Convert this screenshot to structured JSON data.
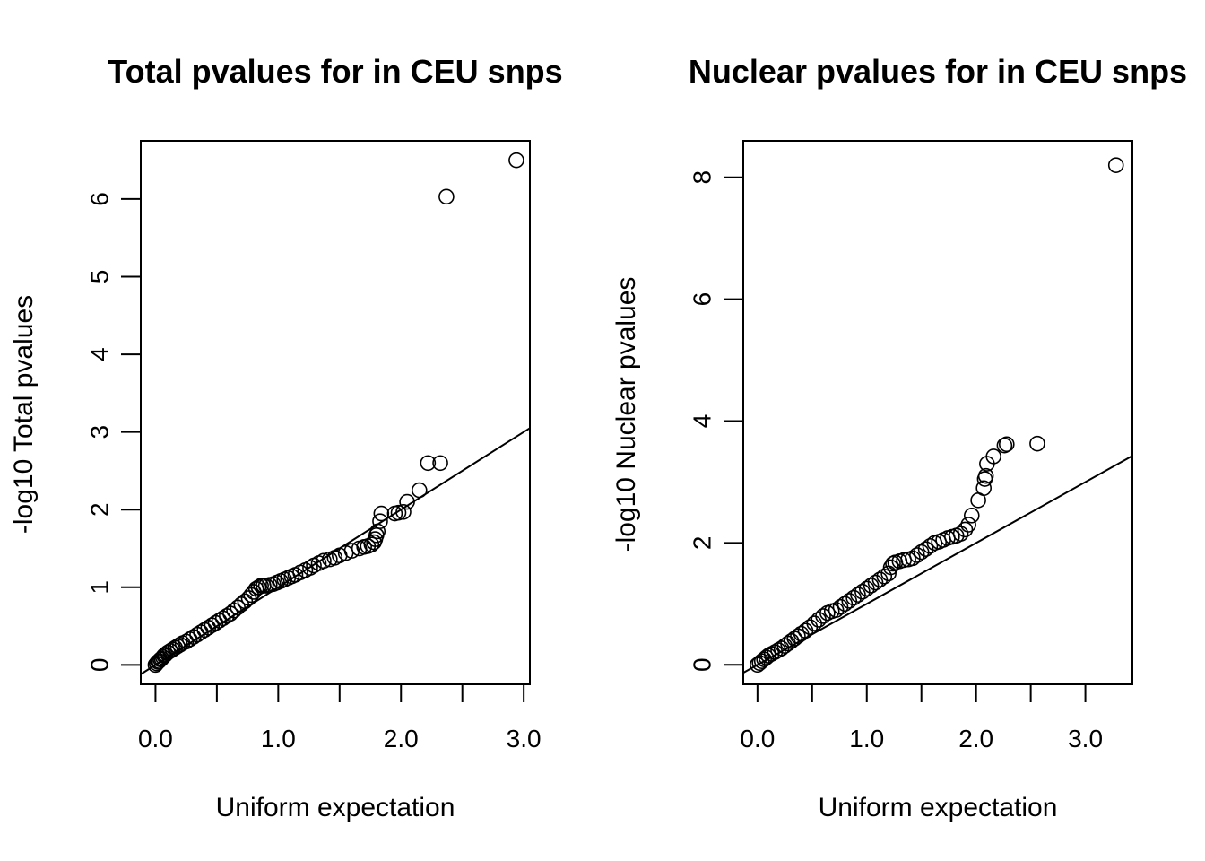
{
  "chart_data": [
    {
      "type": "scatter",
      "title": "Total pvalues for in CEU snps",
      "xlabel": "Uniform expectation",
      "ylabel": "-log10 Total pvalues",
      "xlim": [
        -0.12,
        3.05
      ],
      "ylim": [
        -0.25,
        6.75
      ],
      "xticks": [
        0.0,
        0.5,
        1.0,
        1.5,
        2.0,
        2.5,
        3.0
      ],
      "xtick_labels": [
        "0.0",
        "1.0",
        "2.0",
        "3.0"
      ],
      "xtick_label_values": [
        0.0,
        1.0,
        2.0,
        3.0
      ],
      "yticks": [
        0,
        1,
        2,
        3,
        4,
        5,
        6
      ],
      "ytick_labels": [
        "0",
        "1",
        "2",
        "3",
        "4",
        "5",
        "6"
      ],
      "reference_line": {
        "intercept": 0,
        "slope": 1
      },
      "points": {
        "x": [
          0.0,
          0.01,
          0.02,
          0.03,
          0.04,
          0.05,
          0.06,
          0.07,
          0.08,
          0.1,
          0.12,
          0.14,
          0.16,
          0.18,
          0.2,
          0.22,
          0.25,
          0.28,
          0.31,
          0.34,
          0.37,
          0.4,
          0.43,
          0.46,
          0.49,
          0.52,
          0.55,
          0.58,
          0.61,
          0.64,
          0.67,
          0.7,
          0.73,
          0.76,
          0.78,
          0.8,
          0.82,
          0.84,
          0.86,
          0.88,
          0.9,
          0.93,
          0.96,
          0.99,
          1.02,
          1.05,
          1.08,
          1.11,
          1.14,
          1.18,
          1.22,
          1.26,
          1.29,
          1.33,
          1.37,
          1.42,
          1.46,
          1.5,
          1.55,
          1.6,
          1.66,
          1.7,
          1.73,
          1.76,
          1.78,
          1.79,
          1.8,
          1.81,
          1.83,
          1.84,
          1.95,
          1.98,
          2.02,
          2.05,
          2.15,
          2.22,
          2.32,
          2.37,
          2.94
        ],
        "y": [
          0.0,
          0.02,
          0.04,
          0.05,
          0.07,
          0.08,
          0.1,
          0.12,
          0.13,
          0.16,
          0.18,
          0.2,
          0.22,
          0.24,
          0.26,
          0.28,
          0.3,
          0.33,
          0.36,
          0.39,
          0.42,
          0.45,
          0.48,
          0.51,
          0.54,
          0.57,
          0.6,
          0.63,
          0.66,
          0.7,
          0.74,
          0.78,
          0.82,
          0.86,
          0.9,
          0.94,
          0.98,
          1.0,
          1.02,
          1.02,
          1.02,
          1.03,
          1.04,
          1.06,
          1.08,
          1.1,
          1.12,
          1.14,
          1.16,
          1.19,
          1.22,
          1.25,
          1.28,
          1.31,
          1.34,
          1.36,
          1.38,
          1.41,
          1.44,
          1.47,
          1.5,
          1.52,
          1.53,
          1.55,
          1.58,
          1.62,
          1.67,
          1.72,
          1.85,
          1.95,
          1.95,
          1.96,
          1.97,
          2.1,
          2.25,
          2.6,
          2.6,
          6.03,
          6.5
        ]
      }
    },
    {
      "type": "scatter",
      "title": "Nuclear pvalues for in CEU snps",
      "xlabel": "Uniform expectation",
      "ylabel": "-log10 Nuclear pvalues",
      "xlim": [
        -0.13,
        3.43
      ],
      "ylim": [
        -0.32,
        8.6
      ],
      "xticks": [
        0.0,
        0.5,
        1.0,
        1.5,
        2.0,
        2.5,
        3.0
      ],
      "xtick_labels": [
        "0.0",
        "1.0",
        "2.0",
        "3.0"
      ],
      "xtick_label_values": [
        0.0,
        1.0,
        2.0,
        3.0
      ],
      "yticks": [
        0,
        2,
        4,
        6,
        8
      ],
      "ytick_labels": [
        "0",
        "2",
        "4",
        "6",
        "8"
      ],
      "reference_line": {
        "intercept": 0,
        "slope": 1
      },
      "points": {
        "x": [
          0.0,
          0.02,
          0.04,
          0.06,
          0.08,
          0.1,
          0.13,
          0.16,
          0.19,
          0.22,
          0.25,
          0.28,
          0.31,
          0.34,
          0.37,
          0.4,
          0.44,
          0.48,
          0.52,
          0.56,
          0.6,
          0.64,
          0.68,
          0.72,
          0.76,
          0.8,
          0.84,
          0.88,
          0.92,
          0.96,
          1.0,
          1.04,
          1.08,
          1.12,
          1.16,
          1.2,
          1.22,
          1.24,
          1.26,
          1.3,
          1.34,
          1.38,
          1.42,
          1.46,
          1.5,
          1.54,
          1.58,
          1.62,
          1.66,
          1.7,
          1.74,
          1.78,
          1.82,
          1.86,
          1.9,
          1.93,
          1.96,
          2.02,
          2.07,
          2.08,
          2.09,
          2.1,
          2.16,
          2.26,
          2.28,
          2.56,
          3.28
        ],
        "y": [
          0.0,
          0.03,
          0.06,
          0.09,
          0.12,
          0.15,
          0.18,
          0.21,
          0.24,
          0.27,
          0.31,
          0.35,
          0.39,
          0.43,
          0.47,
          0.51,
          0.56,
          0.62,
          0.68,
          0.74,
          0.8,
          0.85,
          0.88,
          0.9,
          0.95,
          1.0,
          1.05,
          1.1,
          1.15,
          1.2,
          1.25,
          1.3,
          1.35,
          1.4,
          1.45,
          1.5,
          1.6,
          1.66,
          1.68,
          1.7,
          1.72,
          1.73,
          1.75,
          1.8,
          1.85,
          1.9,
          1.95,
          2.0,
          2.02,
          2.05,
          2.08,
          2.1,
          2.12,
          2.15,
          2.22,
          2.3,
          2.45,
          2.7,
          2.9,
          3.05,
          3.1,
          3.3,
          3.42,
          3.6,
          3.62,
          3.63,
          8.2
        ]
      }
    }
  ]
}
